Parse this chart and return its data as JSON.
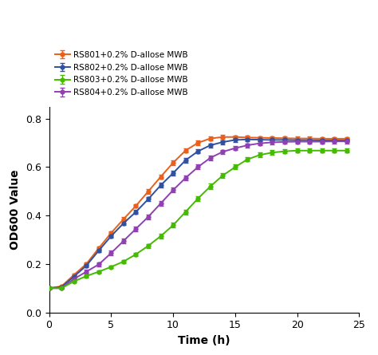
{
  "title": "",
  "xlabel": "Time (h)",
  "ylabel": "OD600 Value",
  "xlim": [
    0,
    25
  ],
  "ylim": [
    0.0,
    0.85
  ],
  "yticks": [
    0.0,
    0.2,
    0.4,
    0.6,
    0.8
  ],
  "xticks": [
    0,
    5,
    10,
    15,
    20,
    25
  ],
  "background_color": "#ffffff",
  "legend_labels": [
    "RS801+0.2% D-allose MWB",
    "RS802+0.2% D-allose MWB",
    "RS803+0.2% D-allose MWB",
    "RS804+0.2% D-allose MWB"
  ],
  "line_colors": [
    "#E8601C",
    "#3050A0",
    "#44BB00",
    "#9040B0"
  ],
  "series": {
    "RS801": {
      "x": [
        0,
        1,
        2,
        3,
        4,
        5,
        6,
        7,
        8,
        9,
        10,
        11,
        12,
        13,
        14,
        15,
        16,
        17,
        18,
        19,
        20,
        21,
        22,
        23,
        24
      ],
      "y": [
        0.1,
        0.108,
        0.155,
        0.2,
        0.265,
        0.328,
        0.385,
        0.44,
        0.5,
        0.56,
        0.618,
        0.668,
        0.7,
        0.718,
        0.724,
        0.724,
        0.722,
        0.721,
        0.72,
        0.719,
        0.718,
        0.718,
        0.717,
        0.717,
        0.717
      ],
      "yerr": [
        0.004,
        0.004,
        0.005,
        0.006,
        0.007,
        0.007,
        0.008,
        0.008,
        0.009,
        0.009,
        0.009,
        0.009,
        0.009,
        0.008,
        0.008,
        0.007,
        0.007,
        0.007,
        0.007,
        0.007,
        0.007,
        0.007,
        0.007,
        0.007,
        0.007
      ]
    },
    "RS802": {
      "x": [
        0,
        1,
        2,
        3,
        4,
        5,
        6,
        7,
        8,
        9,
        10,
        11,
        12,
        13,
        14,
        15,
        16,
        17,
        18,
        19,
        20,
        21,
        22,
        23,
        24
      ],
      "y": [
        0.1,
        0.105,
        0.148,
        0.193,
        0.255,
        0.315,
        0.368,
        0.415,
        0.468,
        0.525,
        0.575,
        0.628,
        0.665,
        0.69,
        0.703,
        0.712,
        0.714,
        0.713,
        0.712,
        0.712,
        0.711,
        0.711,
        0.71,
        0.71,
        0.71
      ],
      "yerr": [
        0.004,
        0.004,
        0.005,
        0.006,
        0.007,
        0.007,
        0.008,
        0.008,
        0.008,
        0.009,
        0.009,
        0.009,
        0.008,
        0.008,
        0.008,
        0.007,
        0.007,
        0.007,
        0.007,
        0.007,
        0.007,
        0.007,
        0.007,
        0.007,
        0.007
      ]
    },
    "RS803": {
      "x": [
        0,
        1,
        2,
        3,
        4,
        5,
        6,
        7,
        8,
        9,
        10,
        11,
        12,
        13,
        14,
        15,
        16,
        17,
        18,
        19,
        20,
        21,
        22,
        23,
        24
      ],
      "y": [
        0.1,
        0.1,
        0.128,
        0.15,
        0.168,
        0.188,
        0.21,
        0.24,
        0.275,
        0.315,
        0.36,
        0.415,
        0.47,
        0.52,
        0.565,
        0.6,
        0.632,
        0.65,
        0.66,
        0.665,
        0.668,
        0.668,
        0.668,
        0.668,
        0.668
      ],
      "yerr": [
        0.004,
        0.004,
        0.005,
        0.005,
        0.006,
        0.006,
        0.007,
        0.007,
        0.008,
        0.009,
        0.01,
        0.01,
        0.011,
        0.011,
        0.01,
        0.01,
        0.009,
        0.009,
        0.009,
        0.009,
        0.009,
        0.009,
        0.009,
        0.009,
        0.009
      ]
    },
    "RS804": {
      "x": [
        0,
        1,
        2,
        3,
        4,
        5,
        6,
        7,
        8,
        9,
        10,
        11,
        12,
        13,
        14,
        15,
        16,
        17,
        18,
        19,
        20,
        21,
        22,
        23,
        24
      ],
      "y": [
        0.1,
        0.1,
        0.138,
        0.168,
        0.198,
        0.245,
        0.295,
        0.345,
        0.395,
        0.45,
        0.505,
        0.555,
        0.6,
        0.638,
        0.663,
        0.678,
        0.69,
        0.698,
        0.702,
        0.704,
        0.705,
        0.705,
        0.705,
        0.706,
        0.706
      ],
      "yerr": [
        0.004,
        0.004,
        0.006,
        0.007,
        0.008,
        0.009,
        0.009,
        0.01,
        0.01,
        0.01,
        0.01,
        0.01,
        0.01,
        0.009,
        0.009,
        0.009,
        0.008,
        0.008,
        0.008,
        0.008,
        0.008,
        0.008,
        0.008,
        0.008,
        0.008
      ]
    }
  },
  "series_order": [
    "RS801",
    "RS802",
    "RS804",
    "RS803"
  ],
  "marker": "o",
  "markersize": 3.5,
  "linewidth": 1.4,
  "capsize": 2,
  "elinewidth": 0.9,
  "legend_order": [
    "RS801",
    "RS802",
    "RS803",
    "RS804"
  ]
}
